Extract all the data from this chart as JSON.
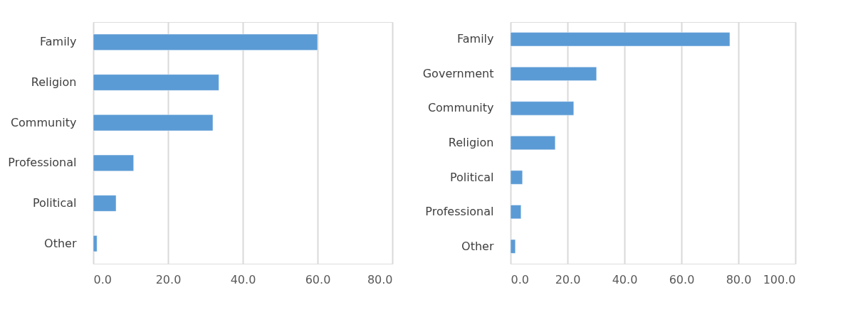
{
  "chart_data": [
    {
      "type": "bar",
      "orientation": "horizontal",
      "categories": [
        "Family",
        "Religion",
        "Community",
        "Professional",
        "Political",
        "Other"
      ],
      "values": [
        60,
        33.6,
        32.0,
        10.8,
        6.1,
        1.0
      ],
      "color": "#5b9bd5",
      "xlim": [
        0,
        80
      ],
      "xticks": [
        {
          "value": 0,
          "label": "0.0"
        },
        {
          "value": 20,
          "label": "20.0"
        },
        {
          "value": 40,
          "label": "40.0"
        },
        {
          "value": 60,
          "label": "60.0"
        },
        {
          "value": 80,
          "label": "80.0"
        }
      ],
      "grid": "x"
    },
    {
      "type": "bar",
      "orientation": "horizontal",
      "categories": [
        "Family",
        "Government",
        "Community",
        "Religion",
        "Political",
        "Professional",
        "Other"
      ],
      "values": [
        77,
        30.2,
        22.2,
        15.7,
        4.2,
        3.7,
        1.7
      ],
      "color": "#5b9bd5",
      "xlim": [
        0,
        100
      ],
      "xticks": [
        {
          "value": 0,
          "label": "0.0"
        },
        {
          "value": 20,
          "label": "20.0"
        },
        {
          "value": 40,
          "label": "40.0"
        },
        {
          "value": 60,
          "label": "60.0"
        },
        {
          "value": 80,
          "label": "80.0"
        },
        {
          "value": 100,
          "label": "100.0"
        }
      ],
      "grid": "x"
    }
  ]
}
